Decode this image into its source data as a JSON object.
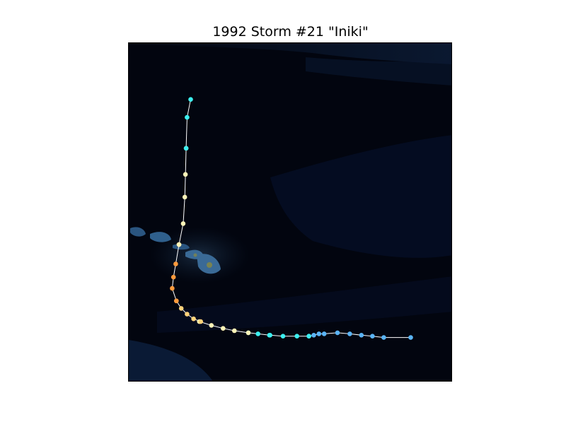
{
  "chart_data": {
    "type": "scatter",
    "title": "1992 Storm #21 \"Iniki\"",
    "xlabel": "",
    "ylabel": "",
    "grid": false,
    "track_color": "#ffffff",
    "background": "satellite-night-ocean",
    "colors": {
      "ocean": "#02050f",
      "land_dark": "#1a3a5c",
      "land_highlight": "#3a6a96",
      "island_accent": "#8a8a40",
      "cloud_band": "#0b1a33"
    },
    "category_colors": {
      "tropical_depression": "#5ab4f5",
      "tropical_storm": "#3cf0f0",
      "category_1": "#fff5b8",
      "category_2": "#ffd27a",
      "category_3": "#ff9a3c"
    },
    "points": [
      {
        "x": 0.87,
        "y": 0.132,
        "category": "tropical_depression"
      },
      {
        "x": 0.787,
        "y": 0.132,
        "category": "tropical_depression"
      },
      {
        "x": 0.752,
        "y": 0.136,
        "category": "tropical_depression"
      },
      {
        "x": 0.718,
        "y": 0.139,
        "category": "tropical_depression"
      },
      {
        "x": 0.682,
        "y": 0.143,
        "category": "tropical_depression"
      },
      {
        "x": 0.644,
        "y": 0.146,
        "category": "tropical_depression"
      },
      {
        "x": 0.603,
        "y": 0.143,
        "category": "tropical_depression"
      },
      {
        "x": 0.587,
        "y": 0.143,
        "category": "tropical_depression"
      },
      {
        "x": 0.571,
        "y": 0.139,
        "category": "tropical_depression"
      },
      {
        "x": 0.556,
        "y": 0.136,
        "category": "tropical_depression"
      },
      {
        "x": 0.556,
        "y": 0.136,
        "category": "tropical_storm"
      },
      {
        "x": 0.519,
        "y": 0.136,
        "category": "tropical_storm"
      },
      {
        "x": 0.476,
        "y": 0.136,
        "category": "tropical_storm"
      },
      {
        "x": 0.436,
        "y": 0.139,
        "category": "tropical_storm"
      },
      {
        "x": 0.434,
        "y": 0.139,
        "category": "tropical_storm"
      },
      {
        "x": 0.399,
        "y": 0.143,
        "category": "tropical_storm"
      },
      {
        "x": 0.369,
        "y": 0.146,
        "category": "tropical_storm"
      },
      {
        "x": 0.369,
        "y": 0.146,
        "category": "category_1"
      },
      {
        "x": 0.326,
        "y": 0.152,
        "category": "category_1"
      },
      {
        "x": 0.291,
        "y": 0.159,
        "category": "category_1"
      },
      {
        "x": 0.255,
        "y": 0.168,
        "category": "category_1"
      },
      {
        "x": 0.218,
        "y": 0.179,
        "category": "category_1"
      },
      {
        "x": 0.222,
        "y": 0.179,
        "category": "category_2"
      },
      {
        "x": 0.2,
        "y": 0.187,
        "category": "category_2"
      },
      {
        "x": 0.18,
        "y": 0.201,
        "category": "category_2"
      },
      {
        "x": 0.162,
        "y": 0.218,
        "category": "category_2"
      },
      {
        "x": 0.147,
        "y": 0.24,
        "category": "category_2"
      },
      {
        "x": 0.147,
        "y": 0.24,
        "category": "category_3"
      },
      {
        "x": 0.134,
        "y": 0.277,
        "category": "category_3"
      },
      {
        "x": 0.138,
        "y": 0.31,
        "category": "category_3"
      },
      {
        "x": 0.145,
        "y": 0.349,
        "category": "category_3"
      },
      {
        "x": 0.155,
        "y": 0.406,
        "category": "category_3"
      },
      {
        "x": 0.155,
        "y": 0.406,
        "category": "category_1"
      },
      {
        "x": 0.168,
        "y": 0.468,
        "category": "category_1"
      },
      {
        "x": 0.173,
        "y": 0.546,
        "category": "category_1"
      },
      {
        "x": 0.175,
        "y": 0.613,
        "category": "category_1"
      },
      {
        "x": 0.177,
        "y": 0.69,
        "category": "category_1"
      },
      {
        "x": 0.177,
        "y": 0.69,
        "category": "tropical_storm"
      },
      {
        "x": 0.18,
        "y": 0.781,
        "category": "tropical_storm"
      },
      {
        "x": 0.191,
        "y": 0.834,
        "category": "tropical_storm"
      }
    ]
  }
}
